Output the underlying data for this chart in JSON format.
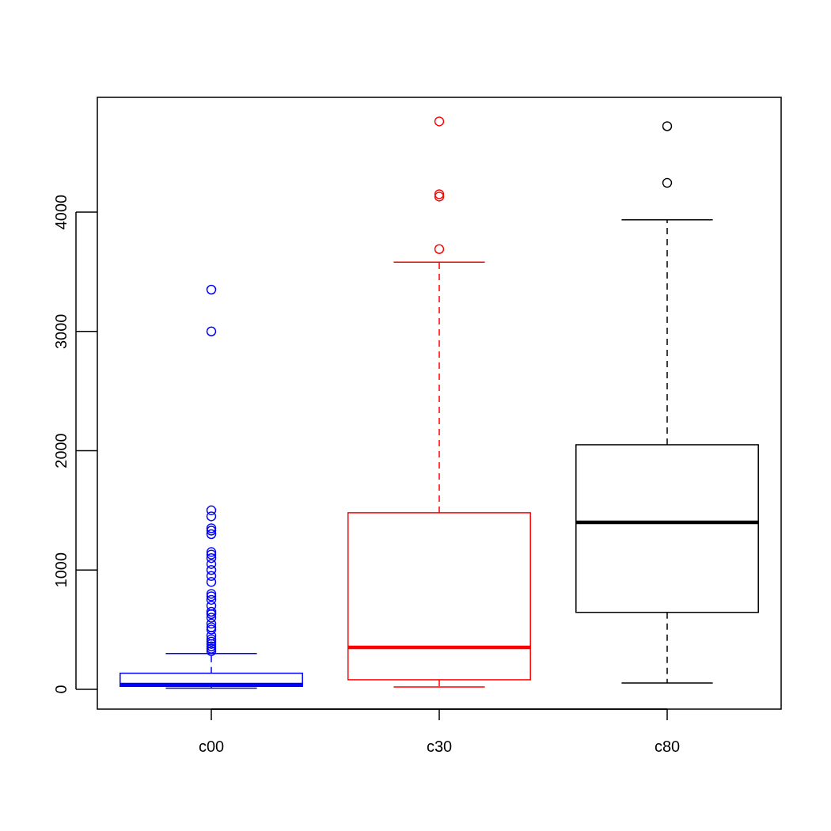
{
  "chart_data": {
    "type": "box",
    "categories": [
      "c00",
      "c30",
      "c80"
    ],
    "colors": [
      "#0000ff",
      "#ff0000",
      "#000000"
    ],
    "boxes": [
      {
        "low": 10,
        "q1": 25,
        "median": 40,
        "q3": 135,
        "high": 300,
        "outliers": [
          3350,
          3000,
          1500,
          1450,
          1350,
          1330,
          1300,
          1150,
          1130,
          1100,
          1050,
          1000,
          950,
          900,
          800,
          780,
          750,
          700,
          650,
          630,
          600,
          550,
          520,
          500,
          450,
          420,
          400,
          380,
          360,
          340,
          320
        ]
      },
      {
        "low": 20,
        "q1": 80,
        "median": 352,
        "q3": 1480,
        "high": 3580,
        "outliers": [
          4760,
          4150,
          4130,
          3690
        ]
      },
      {
        "low": 53,
        "q1": 645,
        "median": 1400,
        "q3": 2050,
        "high": 3935,
        "outliers": [
          4720,
          4245
        ]
      }
    ],
    "ylim": [
      -166,
      4962
    ],
    "yticks": [
      0,
      1000,
      2000,
      3000,
      4000
    ],
    "grid": false,
    "marker": "circle",
    "line_style": "dashed"
  }
}
